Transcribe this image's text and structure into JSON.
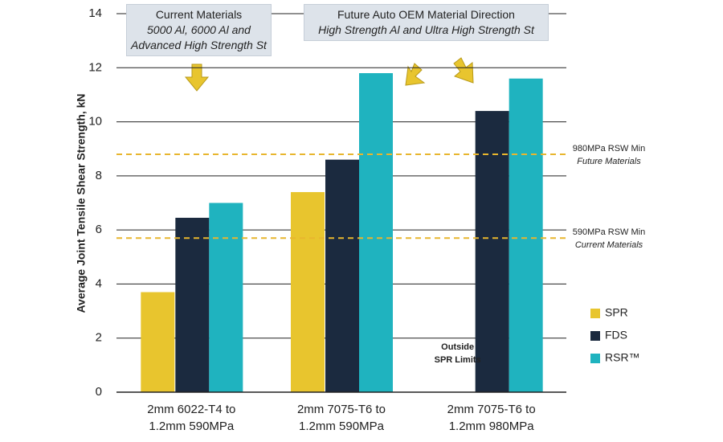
{
  "chart_data": {
    "type": "bar",
    "y_label": "Average Joint Tensile Shear Strength, kN",
    "categories": [
      "2mm 6022-T4 to 1.2mm 590MPa",
      "2mm 7075-T6 to 1.2mm 590MPa",
      "2mm 7075-T6 to 1.2mm 980MPa"
    ],
    "series": [
      {
        "name": "SPR",
        "color": "#e8c52e",
        "values": [
          3.7,
          7.4,
          null
        ]
      },
      {
        "name": "FDS",
        "color": "#1b2a3f",
        "values": [
          6.45,
          8.6,
          10.4
        ]
      },
      {
        "name": "RSR™",
        "color": "#1fb3bf",
        "values": [
          7.0,
          11.8,
          11.6
        ]
      }
    ],
    "ylim": [
      0,
      14
    ],
    "yticks": [
      0,
      2,
      4,
      6,
      8,
      10,
      12,
      14
    ],
    "grid": true,
    "legend": "right",
    "reference_lines": [
      {
        "value": 8.8,
        "color": "#e8b62e",
        "label": [
          "980MPa RSW Min",
          "Future Materials"
        ]
      },
      {
        "value": 5.7,
        "color": "#e8b62e",
        "label": [
          "590MPa RSW Min",
          "Current Materials"
        ]
      }
    ],
    "annotations": [
      {
        "title": "Current Materials",
        "lines": [
          "5000 Al, 6000 Al and",
          "Advanced High Strength St"
        ]
      },
      {
        "title": "Future Auto OEM Material Direction",
        "lines": [
          "High Strength Al and Ultra High Strength St"
        ]
      }
    ],
    "bar_note": "Outside SPR Limits"
  }
}
